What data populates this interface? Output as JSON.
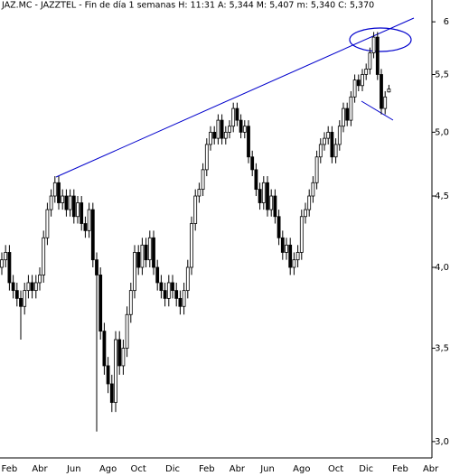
{
  "chart_data": {
    "type": "candlestick",
    "title": "JAZ.MC - JAZZTEL - Fin de día 1 semanas H: 11:31 A: 5,344 M: 5,407 m: 5,340 C: 5,370",
    "log_scale": true,
    "color": "#000000",
    "annotation_color": "#0000cc",
    "ylim": [
      2.92,
      6.22
    ],
    "yticks": [
      {
        "value": 3.0,
        "label": "3,0"
      },
      {
        "value": 3.5,
        "label": "3,5"
      },
      {
        "value": 4.0,
        "label": "4,0"
      },
      {
        "value": 4.5,
        "label": "4,5"
      },
      {
        "value": 5.0,
        "label": "5,0"
      },
      {
        "value": 5.5,
        "label": "5,5"
      },
      6
    ],
    "categories": [
      null,
      null,
      "Feb",
      null,
      null,
      null,
      null,
      null,
      null,
      null,
      "Abr",
      null,
      null,
      null,
      null,
      null,
      null,
      null,
      null,
      "Jun",
      null,
      null,
      null,
      null,
      null,
      null,
      null,
      null,
      "Ago",
      null,
      null,
      null,
      null,
      null,
      null,
      null,
      "Oct",
      null,
      null,
      null,
      null,
      null,
      null,
      null,
      null,
      "Dic",
      null,
      null,
      null,
      null,
      null,
      null,
      null,
      null,
      "Feb",
      null,
      null,
      null,
      null,
      null,
      null,
      null,
      "Abr",
      null,
      null,
      null,
      null,
      null,
      null,
      null,
      "Jun",
      null,
      null,
      null,
      null,
      null,
      null,
      null,
      null,
      "Ago",
      null,
      null,
      null,
      null,
      null,
      null,
      null,
      null,
      "Oct",
      null,
      null,
      null,
      null,
      null,
      null,
      null,
      "Dic",
      null,
      null,
      null,
      null,
      null,
      null,
      null,
      null,
      "Feb",
      null,
      null,
      null,
      null,
      null,
      null,
      null,
      "Abr"
    ],
    "open": [
      4.0,
      4.05,
      4.1,
      3.9,
      3.85,
      3.8,
      3.75,
      3.85,
      3.9,
      3.85,
      3.9,
      3.95,
      4.2,
      4.4,
      4.5,
      4.6,
      4.45,
      4.5,
      4.4,
      4.5,
      4.35,
      4.45,
      4.3,
      4.25,
      4.4,
      4.05,
      3.95,
      3.6,
      3.4,
      3.3,
      3.2,
      3.55,
      3.4,
      3.5,
      3.7,
      3.85,
      4.1,
      4.0,
      4.15,
      4.05,
      4.2,
      4.0,
      3.9,
      3.85,
      3.8,
      3.9,
      3.85,
      3.8,
      3.75,
      3.85,
      4.0,
      4.3,
      4.5,
      4.55,
      4.7,
      4.9,
      5.0,
      4.95,
      5.1,
      4.95,
      5.0,
      5.05,
      5.2,
      5.1,
      5.0,
      5.05,
      4.8,
      4.7,
      4.55,
      4.45,
      4.6,
      4.4,
      4.5,
      4.35,
      4.2,
      4.1,
      4.15,
      4.0,
      4.05,
      4.1,
      4.35,
      4.4,
      4.5,
      4.6,
      4.8,
      4.9,
      4.95,
      5.0,
      4.8,
      4.9,
      5.05,
      5.2,
      5.1,
      5.3,
      5.45,
      5.4,
      5.5,
      5.55,
      5.7,
      5.85,
      5.5,
      5.2,
      5.344,
      null,
      null,
      null,
      null,
      null,
      null,
      null,
      null,
      null,
      null,
      null
    ],
    "high": [
      4.1,
      4.15,
      4.15,
      3.95,
      3.9,
      3.85,
      3.9,
      3.95,
      3.95,
      3.95,
      4.0,
      4.25,
      4.45,
      4.55,
      4.65,
      4.65,
      4.55,
      4.55,
      4.55,
      4.55,
      4.5,
      4.5,
      4.35,
      4.45,
      4.45,
      4.1,
      4.0,
      3.65,
      3.45,
      3.35,
      3.6,
      3.6,
      3.55,
      3.75,
      3.9,
      4.15,
      4.15,
      4.2,
      4.2,
      4.25,
      4.25,
      4.05,
      3.95,
      3.9,
      3.95,
      3.95,
      3.9,
      3.85,
      3.9,
      4.05,
      4.35,
      4.55,
      4.6,
      4.75,
      4.95,
      5.05,
      5.05,
      5.15,
      5.15,
      5.05,
      5.1,
      5.25,
      5.25,
      5.15,
      5.1,
      5.1,
      4.85,
      4.75,
      4.6,
      4.65,
      4.65,
      4.55,
      4.55,
      4.4,
      4.25,
      4.2,
      4.2,
      4.1,
      4.15,
      4.4,
      4.45,
      4.55,
      4.65,
      4.85,
      4.95,
      5.0,
      5.05,
      5.05,
      4.95,
      5.1,
      5.25,
      5.25,
      5.35,
      5.5,
      5.5,
      5.55,
      5.6,
      5.75,
      5.9,
      5.9,
      5.55,
      5.35,
      5.407,
      null,
      null,
      null,
      null,
      null,
      null,
      null,
      null,
      null,
      null,
      null
    ],
    "low": [
      3.95,
      4.0,
      3.85,
      3.8,
      3.75,
      3.55,
      3.7,
      3.8,
      3.8,
      3.8,
      3.85,
      3.9,
      4.15,
      4.35,
      4.45,
      4.4,
      4.4,
      4.35,
      4.35,
      4.3,
      4.3,
      4.25,
      4.2,
      4.2,
      4.0,
      3.05,
      3.55,
      3.35,
      3.25,
      3.15,
      3.15,
      3.35,
      3.35,
      3.45,
      3.65,
      3.8,
      3.95,
      3.95,
      4.0,
      4.0,
      3.95,
      3.85,
      3.8,
      3.75,
      3.75,
      3.8,
      3.75,
      3.7,
      3.7,
      3.8,
      3.95,
      4.25,
      4.45,
      4.5,
      4.65,
      4.85,
      4.9,
      4.9,
      4.9,
      4.9,
      4.95,
      5.0,
      5.05,
      4.95,
      4.95,
      4.75,
      4.65,
      4.5,
      4.4,
      4.4,
      4.35,
      4.35,
      4.3,
      4.15,
      4.05,
      4.05,
      3.95,
      3.95,
      4.0,
      4.05,
      4.3,
      4.35,
      4.45,
      4.55,
      4.75,
      4.85,
      4.9,
      4.75,
      4.75,
      4.85,
      5.0,
      5.05,
      5.05,
      5.25,
      5.35,
      5.35,
      5.45,
      5.5,
      5.65,
      5.45,
      5.15,
      5.15,
      5.34,
      null,
      null,
      null,
      null,
      null,
      null,
      null,
      null,
      null,
      null,
      null
    ],
    "close": [
      4.05,
      4.1,
      3.9,
      3.85,
      3.8,
      3.75,
      3.85,
      3.9,
      3.85,
      3.9,
      3.95,
      4.2,
      4.4,
      4.5,
      4.6,
      4.45,
      4.5,
      4.4,
      4.5,
      4.35,
      4.45,
      4.3,
      4.25,
      4.4,
      4.05,
      3.95,
      3.6,
      3.4,
      3.3,
      3.2,
      3.55,
      3.4,
      3.5,
      3.7,
      3.85,
      4.1,
      4.0,
      4.15,
      4.05,
      4.2,
      4.0,
      3.9,
      3.85,
      3.8,
      3.9,
      3.85,
      3.8,
      3.75,
      3.85,
      4.0,
      4.3,
      4.5,
      4.55,
      4.7,
      4.9,
      5.0,
      4.95,
      5.1,
      4.95,
      5.0,
      5.05,
      5.2,
      5.1,
      5.0,
      5.05,
      4.8,
      4.7,
      4.55,
      4.45,
      4.6,
      4.4,
      4.5,
      4.35,
      4.2,
      4.1,
      4.15,
      4.0,
      4.05,
      4.1,
      4.35,
      4.4,
      4.5,
      4.6,
      4.8,
      4.9,
      4.95,
      5.0,
      4.8,
      4.9,
      5.05,
      5.2,
      5.1,
      5.3,
      5.45,
      5.4,
      5.5,
      5.55,
      5.7,
      5.85,
      5.5,
      5.2,
      5.3,
      5.37,
      null,
      null,
      null,
      null,
      null,
      null,
      null,
      null,
      null,
      null,
      null
    ]
  }
}
